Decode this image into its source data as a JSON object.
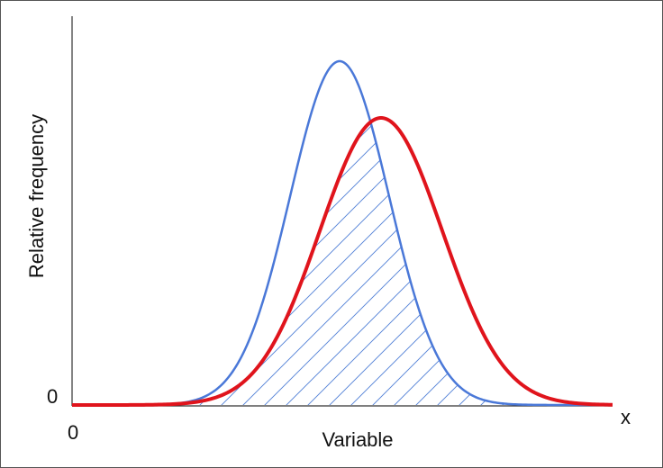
{
  "axes": {
    "y_label": "Relative frequency",
    "x_label": "Variable",
    "y_origin": "0",
    "x_origin": "0",
    "x_end": "x"
  }
}
